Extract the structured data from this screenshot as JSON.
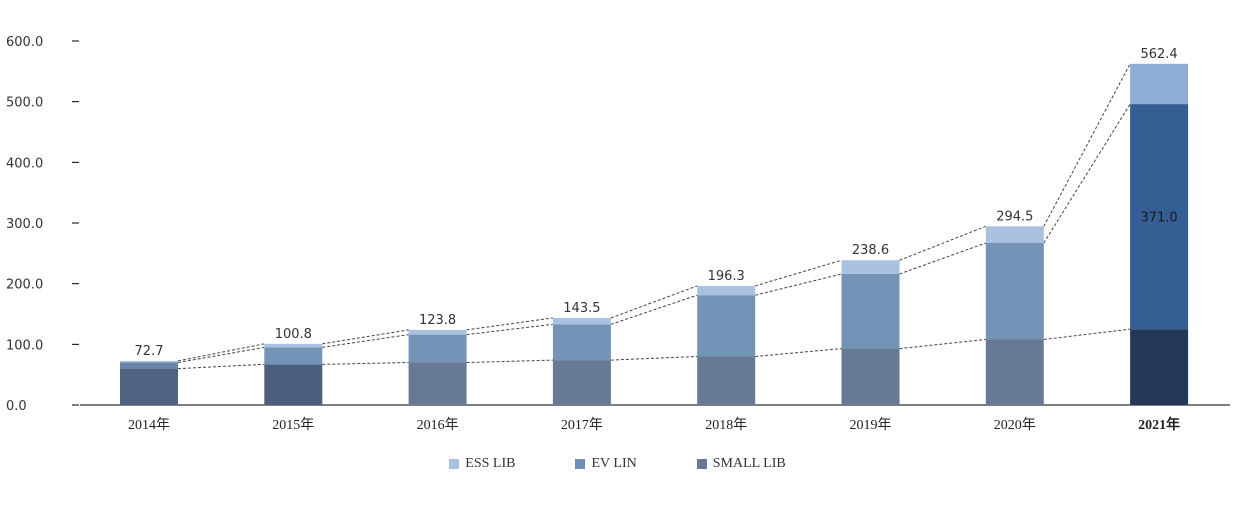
{
  "chart_data": {
    "type": "bar",
    "stacked": true,
    "title": "",
    "xlabel": "",
    "ylabel": "",
    "ylim": [
      0,
      600
    ],
    "yticks": [
      "0.0",
      "100.0",
      "200.0",
      "300.0",
      "400.0",
      "500.0",
      "600.0"
    ],
    "categories": [
      "2014年",
      "2015年",
      "2016年",
      "2017年",
      "2018年",
      "2019年",
      "2020年",
      "2021年"
    ],
    "series": [
      {
        "name": "SMALL LIB",
        "values": [
          60,
          67,
          70,
          74,
          80,
          93,
          108,
          125
        ]
      },
      {
        "name": "EV LIN",
        "values": [
          10,
          28,
          46,
          59,
          101,
          123,
          159,
          371
        ]
      },
      {
        "name": "ESS LIB",
        "values": [
          2.7,
          5.8,
          7.8,
          10.5,
          15.3,
          22.6,
          27.5,
          66.4
        ]
      }
    ],
    "totals": [
      "72.7",
      "100.8",
      "123.8",
      "143.5",
      "196.3",
      "238.6",
      "294.5",
      "562.4"
    ],
    "inner_labels": [
      {
        "category": "2021年",
        "series": "EV LIN",
        "text": "371.0"
      }
    ],
    "legend": [
      "ESS LIB",
      "EV LIN",
      "SMALL LIB"
    ],
    "legend_position": "bottom"
  },
  "colors": {
    "ess": "#a9c1e0",
    "ev": "#7393b7",
    "small": "#687a93",
    "ess_last": "#8eaed8",
    "ev_last": "#355f94",
    "small_last": "#24385a",
    "small_2014": "#4f6482",
    "ev_2014": "#6985ab",
    "small_2015": "#4d5f7e",
    "axis": "#000000",
    "trend": "#444444"
  }
}
